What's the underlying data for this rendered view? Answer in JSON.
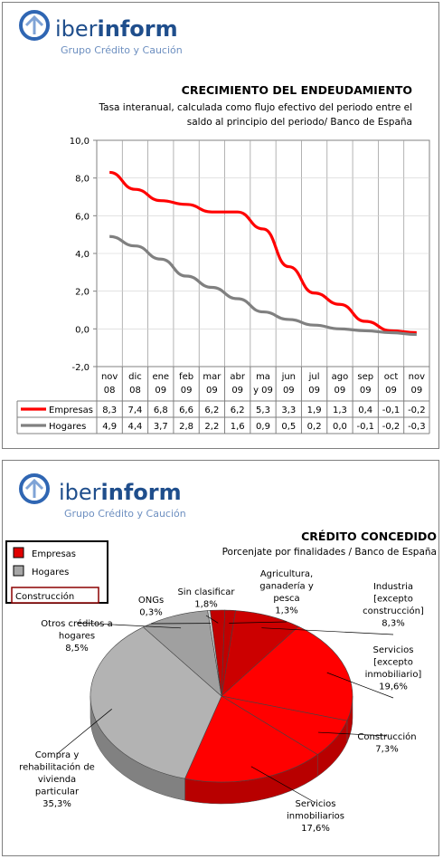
{
  "logo": {
    "brand_prefix": "iber",
    "brand_suffix": "inform",
    "tagline": "Grupo Crédito y Caución"
  },
  "chart_data": [
    {
      "type": "line",
      "title": "CRECIMIENTO DEL ENDEUDAMIENTO",
      "subtitle_lines": [
        "Tasa interanual, calculada como flujo efectivo del periodo entre el",
        "saldo al principio del periodo/ Banco de España"
      ],
      "categories": [
        [
          "nov",
          "08"
        ],
        [
          "dic",
          "08"
        ],
        [
          "ene",
          "09"
        ],
        [
          "feb",
          "09"
        ],
        [
          "mar",
          "09"
        ],
        [
          "abr",
          "09"
        ],
        [
          "ma",
          "y 09"
        ],
        [
          "jun",
          "09"
        ],
        [
          "jul",
          "09"
        ],
        [
          "ago",
          "09"
        ],
        [
          "sep",
          "09"
        ],
        [
          "oct",
          "09"
        ],
        [
          "nov",
          "09"
        ]
      ],
      "ylim": [
        -2,
        10
      ],
      "yticks": [
        "10,0",
        "8,0",
        "6,0",
        "4,0",
        "2,0",
        "0,0",
        "-2,0"
      ],
      "grid": true,
      "legend": "data-table",
      "series": [
        {
          "name": "Empresas",
          "color": "#ff0000",
          "values": [
            8.3,
            7.4,
            6.8,
            6.6,
            6.2,
            6.2,
            5.3,
            3.3,
            1.9,
            1.3,
            0.4,
            -0.1,
            -0.2
          ],
          "labels": [
            "8,3",
            "7,4",
            "6,8",
            "6,6",
            "6,2",
            "6,2",
            "5,3",
            "3,3",
            "1,9",
            "1,3",
            "0,4",
            "-0,1",
            "-0,2"
          ]
        },
        {
          "name": "Hogares",
          "color": "#808080",
          "values": [
            4.9,
            4.4,
            3.7,
            2.8,
            2.2,
            1.6,
            0.9,
            0.5,
            0.2,
            0.0,
            -0.1,
            -0.2,
            -0.3
          ],
          "labels": [
            "4,9",
            "4,4",
            "3,7",
            "2,8",
            "2,2",
            "1,6",
            "0,9",
            "0,5",
            "0,2",
            "0,0",
            "-0,1",
            "-0,2",
            "-0,3"
          ]
        }
      ]
    },
    {
      "type": "pie",
      "title": "CRÉDITO CONCEDIDO",
      "subtitle": "Porcenjate por finalidades / Banco de España",
      "legend": "top-left",
      "legend_entries": [
        {
          "name": "Empresas",
          "color": "#e00000"
        },
        {
          "name": "Hogares",
          "color": "#a6a6a6"
        },
        {
          "name": "Construcción",
          "color": "#ffffff",
          "border": "#8b0000"
        }
      ],
      "slices": [
        {
          "label_lines": [
            "Sin clasificar",
            "1,8%"
          ],
          "value": 1.8,
          "color": "#c00000"
        },
        {
          "label_lines": [
            "Agricultura,",
            "ganadería y",
            "pesca",
            "1,3%"
          ],
          "value": 1.3,
          "color": "#c00000"
        },
        {
          "label_lines": [
            "Industria",
            "[excepto",
            "construcción]",
            "8,3%"
          ],
          "value": 8.3,
          "color": "#cc0000"
        },
        {
          "label_lines": [
            "Servicios",
            "[excepto",
            "inmobiliario]",
            "19,6%"
          ],
          "value": 19.6,
          "color": "#ff0000"
        },
        {
          "label_lines": [
            "Construcción",
            "7,3%"
          ],
          "value": 7.3,
          "color": "#ff0000"
        },
        {
          "label_lines": [
            "Servicios",
            "inmobiliarios",
            "17,6%"
          ],
          "value": 17.6,
          "color": "#ff0000"
        },
        {
          "label_lines": [
            "Compra y",
            "rehabilitación de",
            "vivienda",
            "particular",
            "35,3%"
          ],
          "value": 35.3,
          "color": "#b3b3b3"
        },
        {
          "label_lines": [
            "Otros créditos a",
            "hogares",
            "8,5%"
          ],
          "value": 8.5,
          "color": "#a0a0a0"
        },
        {
          "label_lines": [
            "ONGs",
            "0,3%"
          ],
          "value": 0.3,
          "color": "#d9d9d9"
        }
      ]
    }
  ]
}
